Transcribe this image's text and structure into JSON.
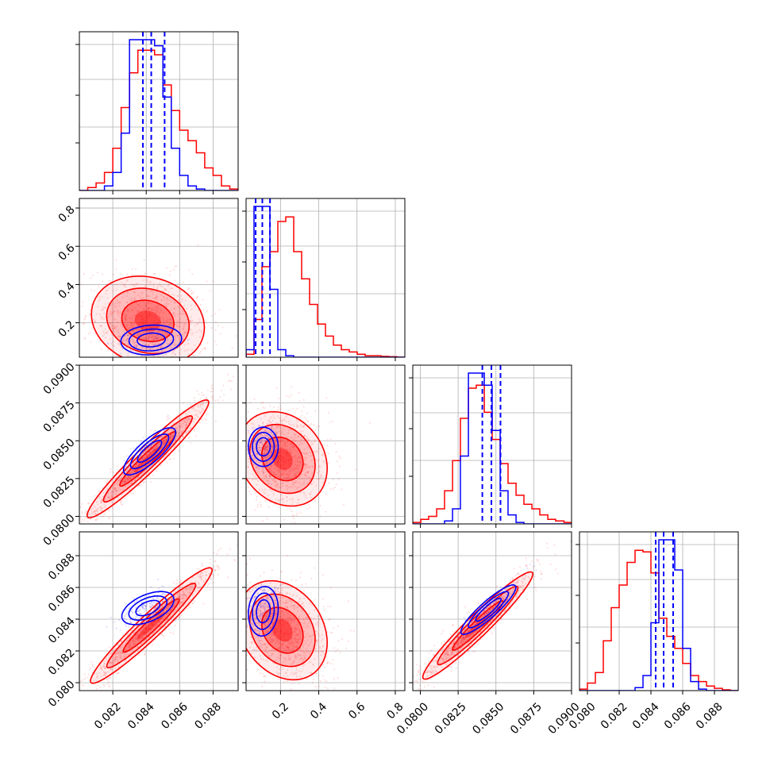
{
  "chart_data": {
    "type": "corner",
    "colors": {
      "red": "#ff0000",
      "blue": "#0000ff",
      "grid": "#b0b0b0"
    },
    "series": [
      {
        "name": "",
        "color": "#ff0000",
        "style": "filled-contours-with-histograms"
      },
      {
        "name": "",
        "color": "#0000ff",
        "style": "contours-with-histograms"
      }
    ],
    "parameters": [
      {
        "id": "p0",
        "range": [
          0.08,
          0.0895
        ],
        "ticks": [
          0.082,
          0.084,
          0.086,
          0.088
        ],
        "tick_labels": [
          "0.082",
          "0.084",
          "0.086",
          "0.088"
        ]
      },
      {
        "id": "p1",
        "range": [
          0.02,
          0.85
        ],
        "ticks": [
          0.2,
          0.4,
          0.6,
          0.8
        ],
        "tick_labels": [
          "0.2",
          "0.4",
          "0.6",
          "0.8"
        ]
      },
      {
        "id": "p2",
        "range": [
          0.0795,
          0.09
        ],
        "ticks": [
          0.08,
          0.0825,
          0.085,
          0.0875,
          0.09
        ],
        "tick_labels": [
          "0.0800",
          "0.0825",
          "0.0850",
          "0.0875",
          "0.0900"
        ]
      },
      {
        "id": "p3",
        "range": [
          0.0795,
          0.0895
        ],
        "ticks": [
          0.08,
          0.082,
          0.084,
          0.086,
          0.088
        ],
        "tick_labels": [
          "0.080",
          "0.082",
          "0.084",
          "0.086",
          "0.088"
        ]
      }
    ],
    "marginals": [
      {
        "edges": [
          0.08,
          0.0805,
          0.081,
          0.0815,
          0.082,
          0.0825,
          0.083,
          0.0835,
          0.084,
          0.0845,
          0.085,
          0.0855,
          0.086,
          0.0865,
          0.087,
          0.0875,
          0.088,
          0.0885,
          0.089,
          0.0895
        ],
        "red": [
          0.0,
          0.02,
          0.05,
          0.12,
          0.28,
          0.55,
          0.78,
          0.93,
          0.93,
          0.9,
          0.7,
          0.53,
          0.4,
          0.33,
          0.25,
          0.15,
          0.1,
          0.03,
          0.01
        ],
        "blue": [
          0.0,
          0.0,
          0.0,
          0.03,
          0.12,
          0.38,
          1.0,
          1.0,
          1.0,
          0.96,
          0.62,
          0.28,
          0.1,
          0.03,
          0.01,
          0.0,
          0.0,
          0.0,
          0.0
        ],
        "blue_quantiles": [
          0.0838,
          0.0843,
          0.0851
        ]
      },
      {
        "edges": [
          0.02,
          0.0615,
          0.103,
          0.1445,
          0.186,
          0.2275,
          0.269,
          0.3105,
          0.352,
          0.3935,
          0.435,
          0.4765,
          0.518,
          0.5595,
          0.601,
          0.6425,
          0.684,
          0.7255,
          0.767,
          0.8085,
          0.85
        ],
        "red": [
          0.02,
          0.25,
          0.6,
          0.7,
          0.9,
          0.93,
          0.7,
          0.52,
          0.35,
          0.22,
          0.14,
          0.08,
          0.05,
          0.035,
          0.02,
          0.01,
          0.01,
          0.005,
          0.003,
          0.0
        ],
        "blue": [
          0.05,
          1.0,
          1.0,
          0.45,
          0.05,
          0.01,
          0.0,
          0.0,
          0.0,
          0.0,
          0.0,
          0.0,
          0.0,
          0.0,
          0.0,
          0.0,
          0.0,
          0.0,
          0.0,
          0.0
        ],
        "blue_quantiles": [
          0.07,
          0.105,
          0.145
        ]
      },
      {
        "edges": [
          0.0795,
          0.08003,
          0.08055,
          0.08108,
          0.0816,
          0.08213,
          0.08265,
          0.08318,
          0.0837,
          0.08423,
          0.08475,
          0.08528,
          0.0858,
          0.08633,
          0.08685,
          0.08738,
          0.0879,
          0.08843,
          0.08895,
          0.0895,
          0.09
        ],
        "red": [
          0.01,
          0.03,
          0.05,
          0.1,
          0.22,
          0.42,
          0.7,
          0.9,
          0.92,
          0.74,
          0.56,
          0.4,
          0.27,
          0.19,
          0.13,
          0.1,
          0.06,
          0.03,
          0.02,
          0.01
        ],
        "blue": [
          0.0,
          0.0,
          0.0,
          0.0,
          0.02,
          0.1,
          0.45,
          1.0,
          1.0,
          0.92,
          0.62,
          0.22,
          0.06,
          0.01,
          0.0,
          0.0,
          0.0,
          0.0,
          0.0,
          0.0
        ],
        "blue_quantiles": [
          0.0841,
          0.0847,
          0.0853
        ]
      },
      {
        "edges": [
          0.0795,
          0.08,
          0.0805,
          0.081,
          0.0815,
          0.082,
          0.0825,
          0.083,
          0.0835,
          0.084,
          0.0845,
          0.085,
          0.0855,
          0.086,
          0.0865,
          0.087,
          0.0875,
          0.088,
          0.0885,
          0.089,
          0.0895
        ],
        "red": [
          0.01,
          0.05,
          0.12,
          0.33,
          0.55,
          0.7,
          0.85,
          0.93,
          0.92,
          0.78,
          0.48,
          0.36,
          0.28,
          0.18,
          0.1,
          0.06,
          0.03,
          0.015,
          0.005,
          0.0
        ],
        "blue": [
          0.0,
          0.0,
          0.0,
          0.0,
          0.0,
          0.0,
          0.0,
          0.02,
          0.1,
          0.45,
          1.0,
          1.0,
          0.8,
          0.28,
          0.06,
          0.01,
          0.0,
          0.0,
          0.0,
          0.0
        ],
        "blue_quantiles": [
          0.0843,
          0.0848,
          0.0854
        ]
      }
    ],
    "pairs": [
      {
        "row": 1,
        "col": 0,
        "red": {
          "center": [
            0.0841,
            0.21
          ],
          "sigma": [
            0.0013,
            0.09
          ],
          "rho": -0.15
        },
        "blue": {
          "center": [
            0.0843,
            0.11
          ],
          "sigma": [
            0.0007,
            0.03
          ],
          "rho": 0.1
        }
      },
      {
        "row": 2,
        "col": 0,
        "red": {
          "center": [
            0.0841,
            0.0838
          ],
          "sigma": [
            0.0014,
            0.0015
          ],
          "rho": 0.96
        },
        "blue": {
          "center": [
            0.0842,
            0.0843
          ],
          "sigma": [
            0.0006,
            0.0006
          ],
          "rho": 0.8
        }
      },
      {
        "row": 2,
        "col": 1,
        "red": {
          "center": [
            0.21,
            0.0838
          ],
          "sigma": [
            0.09,
            0.0012
          ],
          "rho": -0.2
        },
        "blue": {
          "center": [
            0.11,
            0.0846
          ],
          "sigma": [
            0.03,
            0.0005
          ],
          "rho": 0.0
        }
      },
      {
        "row": 3,
        "col": 0,
        "red": {
          "center": [
            0.0843,
            0.0836
          ],
          "sigma": [
            0.0014,
            0.0014
          ],
          "rho": 0.96
        },
        "blue": {
          "center": [
            0.0841,
            0.0847
          ],
          "sigma": [
            0.0006,
            0.0004
          ],
          "rho": 0.5
        }
      },
      {
        "row": 3,
        "col": 1,
        "red": {
          "center": [
            0.21,
            0.0833
          ],
          "sigma": [
            0.09,
            0.0012
          ],
          "rho": -0.25
        },
        "blue": {
          "center": [
            0.11,
            0.0845
          ],
          "sigma": [
            0.03,
            0.0006
          ],
          "rho": 0.1
        }
      },
      {
        "row": 3,
        "col": 2,
        "red": {
          "center": [
            0.0838,
            0.0836
          ],
          "sigma": [
            0.0014,
            0.0013
          ],
          "rho": 0.96
        },
        "blue": {
          "center": [
            0.0845,
            0.0846
          ],
          "sigma": [
            0.0007,
            0.0006
          ],
          "rho": 0.9
        }
      }
    ],
    "grid": true,
    "contour_levels_sigma": [
      1,
      2,
      3
    ],
    "xlabel": "",
    "ylabel": "",
    "title": ""
  }
}
